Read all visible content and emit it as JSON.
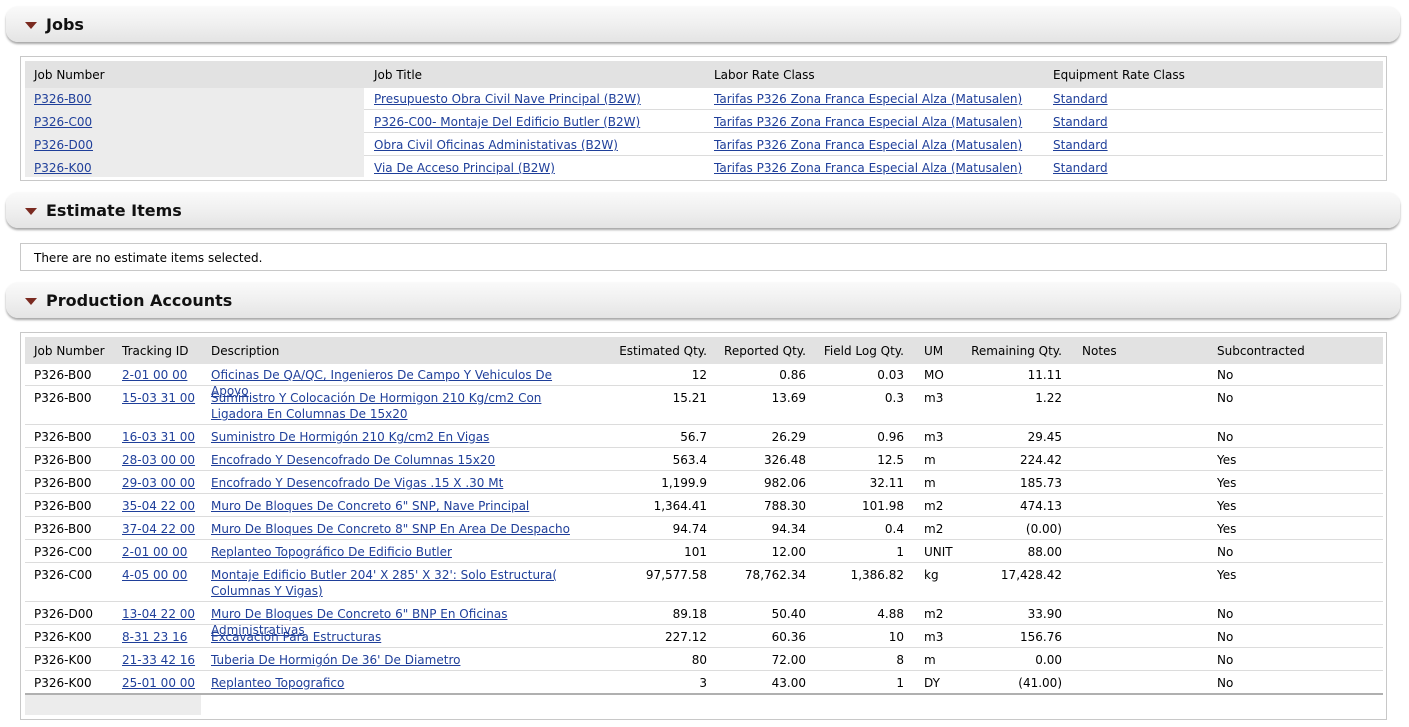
{
  "sections": {
    "jobs": "Jobs",
    "estimate_items": "Estimate Items",
    "production_accounts": "Production Accounts"
  },
  "jobs": {
    "headers": {
      "job_number": "Job Number",
      "job_title": "Job Title",
      "labor_rate_class": "Labor Rate Class",
      "equipment_rate_class": "Equipment Rate Class"
    },
    "rows": [
      {
        "job_number": "P326-B00",
        "job_title": "Presupuesto Obra Civil Nave Principal (B2W)",
        "labor_rate_class": "Tarifas P326 Zona Franca Especial Alza (Matusalen)",
        "equipment_rate_class": "Standard"
      },
      {
        "job_number": "P326-C00",
        "job_title": "P326-C00- Montaje Del Edificio Butler (B2W)",
        "labor_rate_class": "Tarifas P326 Zona Franca Especial Alza (Matusalen)",
        "equipment_rate_class": "Standard"
      },
      {
        "job_number": "P326-D00",
        "job_title": "Obra Civil Oficinas Administativas (B2W)",
        "labor_rate_class": "Tarifas P326 Zona Franca Especial Alza (Matusalen)",
        "equipment_rate_class": "Standard"
      },
      {
        "job_number": "P326-K00",
        "job_title": "Via De Acceso Principal (B2W)",
        "labor_rate_class": "Tarifas P326 Zona Franca Especial Alza (Matusalen)",
        "equipment_rate_class": "Standard"
      }
    ]
  },
  "estimate_items": {
    "empty_message": "There are no estimate items selected."
  },
  "production_accounts": {
    "headers": {
      "job_number": "Job Number",
      "tracking_id": "Tracking ID",
      "description": "Description",
      "estimated_qty": "Estimated Qty.",
      "reported_qty": "Reported Qty.",
      "field_log_qty": "Field Log Qty.",
      "um": "UM",
      "remaining_qty": "Remaining Qty.",
      "notes": "Notes",
      "subcontracted": "Subcontracted"
    },
    "rows": [
      {
        "job_number": "P326-B00",
        "tracking_id": "2-01 00 00",
        "description": "Oficinas De QA/QC, Ingenieros De Campo Y Vehiculos De Apoyo",
        "estimated_qty": "12",
        "reported_qty": "0.86",
        "field_log_qty": "0.03",
        "um": "MO",
        "remaining_qty": "11.11",
        "notes": "",
        "subcontracted": "No"
      },
      {
        "job_number": "P326-B00",
        "tracking_id": "15-03 31 00",
        "description": "Suministro Y Colocación De Hormigon 210 Kg/cm2 Con Ligadora En Columnas De 15x20",
        "estimated_qty": "15.21",
        "reported_qty": "13.69",
        "field_log_qty": "0.3",
        "um": "m3",
        "remaining_qty": "1.22",
        "notes": "",
        "subcontracted": "No"
      },
      {
        "job_number": "P326-B00",
        "tracking_id": "16-03 31 00",
        "description": "Suministro  De Hormigón 210 Kg/cm2 En Vigas",
        "estimated_qty": "56.7",
        "reported_qty": "26.29",
        "field_log_qty": "0.96",
        "um": "m3",
        "remaining_qty": "29.45",
        "notes": "",
        "subcontracted": "No"
      },
      {
        "job_number": "P326-B00",
        "tracking_id": "28-03 00 00",
        "description": "Encofrado Y Desencofrado De Columnas 15x20",
        "estimated_qty": "563.4",
        "reported_qty": "326.48",
        "field_log_qty": "12.5",
        "um": "m",
        "remaining_qty": "224.42",
        "notes": "",
        "subcontracted": "Yes"
      },
      {
        "job_number": "P326-B00",
        "tracking_id": "29-03 00 00",
        "description": "Encofrado Y Desencofrado De Vigas .15 X .30 Mt",
        "estimated_qty": "1,199.9",
        "reported_qty": "982.06",
        "field_log_qty": "32.11",
        "um": "m",
        "remaining_qty": "185.73",
        "notes": "",
        "subcontracted": "Yes"
      },
      {
        "job_number": "P326-B00",
        "tracking_id": "35-04 22 00",
        "description": "Muro De Bloques De Concreto 6\" SNP, Nave Principal",
        "estimated_qty": "1,364.41",
        "reported_qty": "788.30",
        "field_log_qty": "101.98",
        "um": "m2",
        "remaining_qty": "474.13",
        "notes": "",
        "subcontracted": "Yes"
      },
      {
        "job_number": "P326-B00",
        "tracking_id": "37-04 22 00",
        "description": "Muro De Bloques De Concreto 8\" SNP En Area De Despacho",
        "estimated_qty": "94.74",
        "reported_qty": "94.34",
        "field_log_qty": "0.4",
        "um": "m2",
        "remaining_qty": "(0.00)",
        "notes": "",
        "subcontracted": "Yes"
      },
      {
        "job_number": "P326-C00",
        "tracking_id": "2-01 00 00",
        "description": "Replanteo Topográfico De Edificio Butler",
        "estimated_qty": "101",
        "reported_qty": "12.00",
        "field_log_qty": "1",
        "um": "UNIT",
        "remaining_qty": "88.00",
        "notes": "",
        "subcontracted": "No"
      },
      {
        "job_number": "P326-C00",
        "tracking_id": "4-05 00 00",
        "description": "Montaje Edificio Butler 204' X 285' X 32': Solo Estructura( Columnas Y Vigas)",
        "estimated_qty": "97,577.58",
        "reported_qty": "78,762.34",
        "field_log_qty": "1,386.82",
        "um": "kg",
        "remaining_qty": "17,428.42",
        "notes": "",
        "subcontracted": "Yes"
      },
      {
        "job_number": "P326-D00",
        "tracking_id": "13-04 22 00",
        "description": "Muro De Bloques De Concreto 6\" BNP En Oficinas Administrativas",
        "estimated_qty": "89.18",
        "reported_qty": "50.40",
        "field_log_qty": "4.88",
        "um": "m2",
        "remaining_qty": "33.90",
        "notes": "",
        "subcontracted": "No"
      },
      {
        "job_number": "P326-K00",
        "tracking_id": "8-31 23 16",
        "description": "Excavación Para Estructuras",
        "estimated_qty": "227.12",
        "reported_qty": "60.36",
        "field_log_qty": "10",
        "um": "m3",
        "remaining_qty": "156.76",
        "notes": "",
        "subcontracted": "No"
      },
      {
        "job_number": "P326-K00",
        "tracking_id": "21-33 42 16",
        "description": "Tuberia De Hormigón De 36' De Diametro",
        "estimated_qty": "80",
        "reported_qty": "72.00",
        "field_log_qty": "8",
        "um": "m",
        "remaining_qty": "0.00",
        "notes": "",
        "subcontracted": "No"
      },
      {
        "job_number": "P326-K00",
        "tracking_id": "25-01 00 00",
        "description": "Replanteo Topografico",
        "estimated_qty": "3",
        "reported_qty": "43.00",
        "field_log_qty": "1",
        "um": "DY",
        "remaining_qty": "(41.00)",
        "notes": "",
        "subcontracted": "No"
      }
    ]
  }
}
